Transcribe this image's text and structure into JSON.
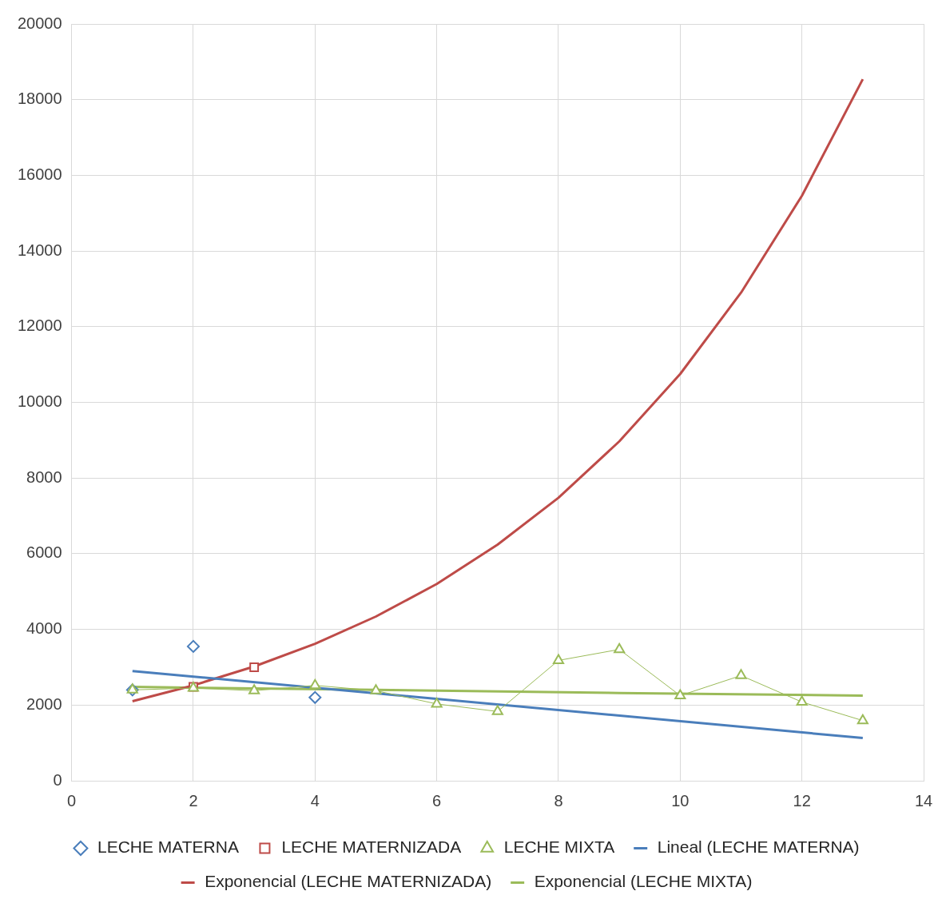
{
  "chart_data": {
    "type": "scatter",
    "xlim": [
      0,
      14
    ],
    "xticks": [
      0,
      2,
      4,
      6,
      8,
      10,
      12,
      14
    ],
    "ylim": [
      0,
      20000
    ],
    "yticks": [
      0,
      2000,
      4000,
      6000,
      8000,
      10000,
      12000,
      14000,
      16000,
      18000,
      20000
    ],
    "grid": true,
    "legend": "bottom",
    "series": [
      {
        "name": "LECHE MATERNA",
        "type": "scatter",
        "marker": "diamond",
        "color": "#4a7ebb",
        "x": [
          1,
          2,
          4
        ],
        "values": [
          2400,
          3550,
          2200
        ]
      },
      {
        "name": "LECHE MATERNIZADA",
        "type": "scatter",
        "marker": "square",
        "color": "#be4b48",
        "x": [
          2,
          3
        ],
        "values": [
          2480,
          3000
        ]
      },
      {
        "name": "LECHE MIXTA",
        "type": "line",
        "marker": "triangle",
        "color": "#9bbb59",
        "x": [
          1,
          2,
          3,
          4,
          5,
          6,
          7,
          8,
          9,
          10,
          11,
          12,
          13
        ],
        "values": [
          2400,
          2450,
          2380,
          2520,
          2380,
          2030,
          1830,
          3180,
          3470,
          2250,
          2780,
          2080,
          1590
        ]
      },
      {
        "name": "Lineal (LECHE MATERNA)",
        "type": "line",
        "marker": "none",
        "color": "#4a7ebb",
        "x": [
          1,
          13
        ],
        "values": [
          2900,
          1130
        ]
      },
      {
        "name": "Exponencial (LECHE MATERNIZADA)",
        "type": "line",
        "marker": "none",
        "color": "#be4b48",
        "x": [
          1,
          2,
          3,
          4,
          5,
          6,
          7,
          8,
          9,
          10,
          11,
          12,
          13
        ],
        "values": [
          2100,
          2520,
          3020,
          3620,
          4340,
          5200,
          6240,
          7480,
          8970,
          10750,
          12900,
          15460,
          18540
        ]
      },
      {
        "name": "Exponencial (LECHE MIXTA)",
        "type": "line",
        "marker": "none",
        "color": "#9bbb59",
        "x": [
          1,
          5,
          9,
          13
        ],
        "values": [
          2480,
          2400,
          2320,
          2250
        ]
      }
    ]
  }
}
